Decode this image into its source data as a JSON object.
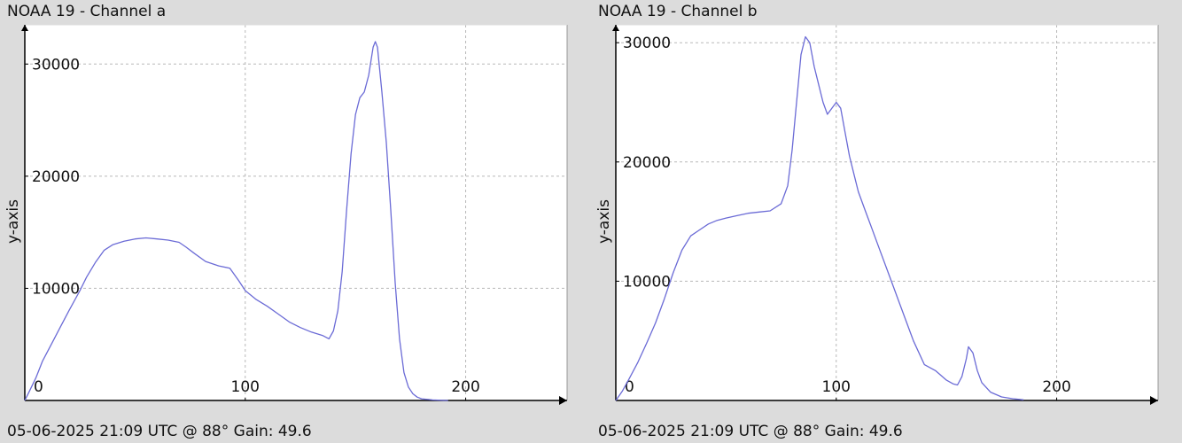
{
  "chart_data": [
    {
      "type": "line",
      "title": "NOAA 19 - Channel a",
      "ylabel": "y-axis",
      "footer": "05-06-2025 21:09 UTC @ 88° Gain: 49.6",
      "xlim": [
        0,
        246
      ],
      "ylim": [
        0,
        33500
      ],
      "xticks": [
        0,
        100,
        200
      ],
      "xtick_labels": [
        "0",
        "100",
        "200"
      ],
      "yticks": [
        10000,
        20000,
        30000
      ],
      "ytick_labels": [
        "10000",
        "20000",
        "30000"
      ],
      "grid": true,
      "line_color": "#6b6bd6",
      "series": [
        {
          "x": [
            0,
            2,
            5,
            8,
            12,
            16,
            20,
            25,
            28,
            32,
            36,
            40,
            45,
            50,
            55,
            60,
            65,
            70,
            73,
            77,
            82,
            88,
            93,
            97,
            100,
            105,
            110,
            115,
            120,
            125,
            130,
            135,
            138,
            140,
            142,
            144,
            146,
            148,
            150,
            152,
            154,
            156,
            158,
            159,
            160,
            161,
            162,
            164,
            166,
            168,
            170,
            172,
            174,
            176,
            178,
            180,
            185,
            190,
            192
          ],
          "y": [
            0,
            800,
            2000,
            3500,
            5000,
            6500,
            8000,
            9800,
            11000,
            12300,
            13400,
            13900,
            14200,
            14400,
            14500,
            14400,
            14300,
            14100,
            13700,
            13100,
            12400,
            12000,
            11800,
            10700,
            9800,
            9000,
            8400,
            7700,
            7000,
            6500,
            6100,
            5800,
            5500,
            6200,
            8000,
            11500,
            17000,
            22000,
            25500,
            27000,
            27500,
            29000,
            31500,
            32000,
            31500,
            29500,
            27500,
            23000,
            17000,
            10500,
            5500,
            2500,
            1200,
            600,
            300,
            150,
            50,
            10,
            0
          ]
        }
      ]
    },
    {
      "type": "line",
      "title": "NOAA 19 - Channel b",
      "ylabel": "y-axis",
      "footer": "05-06-2025 21:09 UTC @ 88° Gain: 49.6",
      "xlim": [
        0,
        246
      ],
      "ylim": [
        0,
        31500
      ],
      "xticks": [
        0,
        100,
        200
      ],
      "xtick_labels": [
        "0",
        "100",
        "200"
      ],
      "yticks": [
        10000,
        20000,
        30000
      ],
      "ytick_labels": [
        "10000",
        "20000",
        "30000"
      ],
      "grid": true,
      "line_color": "#6b6bd6",
      "series": [
        {
          "x": [
            0,
            3,
            6,
            10,
            14,
            18,
            22,
            26,
            30,
            34,
            38,
            42,
            46,
            50,
            55,
            60,
            65,
            70,
            75,
            78,
            80,
            82,
            84,
            86,
            88,
            90,
            92,
            94,
            96,
            98,
            100,
            102,
            104,
            106,
            108,
            110,
            113,
            116,
            120,
            125,
            130,
            135,
            140,
            145,
            150,
            153,
            155,
            157,
            159,
            160,
            162,
            164,
            166,
            170,
            175,
            180,
            185
          ],
          "y": [
            0,
            800,
            1800,
            3200,
            4800,
            6500,
            8500,
            10700,
            12600,
            13800,
            14300,
            14800,
            15100,
            15300,
            15500,
            15700,
            15800,
            15900,
            16500,
            18000,
            21000,
            25000,
            29000,
            30500,
            30000,
            28000,
            26500,
            25000,
            24000,
            24500,
            25000,
            24500,
            22500,
            20500,
            19000,
            17500,
            16000,
            14500,
            12500,
            10000,
            7500,
            5000,
            3000,
            2500,
            1700,
            1400,
            1300,
            2000,
            3500,
            4500,
            4000,
            2500,
            1500,
            700,
            300,
            150,
            50
          ]
        }
      ]
    }
  ]
}
